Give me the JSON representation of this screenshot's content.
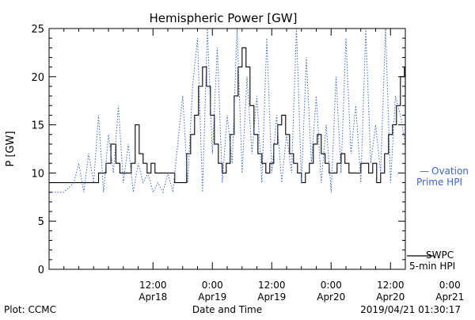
{
  "chart_data": {
    "type": "line",
    "title": "Hemispheric Power [GW]",
    "ylabel": "P [GW]",
    "xlabel": "Date and Time",
    "ylim": [
      0,
      25
    ],
    "yticks": [
      0,
      5,
      10,
      15,
      20,
      25
    ],
    "xlim_hours": [
      0,
      72
    ],
    "x_unit": "hours from 2019-04-17 15:00",
    "xticks": [
      {
        "x": 21,
        "time": "12:00",
        "date": "Apr18"
      },
      {
        "x": 33,
        "time": "0:00",
        "date": "Apr19"
      },
      {
        "x": 45,
        "time": "12:00",
        "date": "Apr19"
      },
      {
        "x": 57,
        "time": "0:00",
        "date": "Apr20"
      },
      {
        "x": 69,
        "time": "12:00",
        "date": "Apr20"
      },
      {
        "x": 81,
        "time": "0:00",
        "date": "Apr21"
      }
    ],
    "series": [
      {
        "name": "SWPC 5-min HPI",
        "color": "#000000",
        "style": "solid-step",
        "x": [
          0,
          2,
          4,
          6,
          8,
          10,
          11.5,
          12.5,
          13.5,
          14.3,
          15,
          15.8,
          16.6,
          17.4,
          18.2,
          19,
          19.8,
          20.6,
          21.4,
          22.2,
          23,
          23.8,
          24.6,
          25.4,
          26.2,
          27,
          27.8,
          28.6,
          29.4,
          30.2,
          31,
          31.8,
          32.6,
          33.4,
          34.2,
          35,
          35.8,
          36.6,
          37.4,
          38.2,
          39,
          39.8,
          40.6,
          41.4,
          42.2,
          43,
          43.8,
          44.6,
          45.4,
          46.2,
          47,
          47.8,
          48.6,
          49.4,
          50.2,
          51,
          51.8,
          52.6,
          53.4,
          54.2,
          55,
          55.8,
          56.6,
          57.4,
          58.2,
          59,
          59.8,
          60.6,
          61.4,
          62.2,
          63,
          63.8,
          64.6,
          65.4,
          66.2,
          67,
          67.8,
          68.6,
          69.4,
          70.2,
          71,
          71.8,
          72
        ],
        "values": [
          9,
          9,
          9,
          9,
          9,
          10,
          11,
          13,
          11,
          10,
          10,
          10,
          11,
          15,
          12,
          11,
          10,
          11,
          10,
          10,
          10,
          10,
          10,
          9,
          9,
          9,
          12,
          14,
          16,
          19,
          21,
          19,
          16,
          13,
          11,
          10,
          11,
          14,
          18,
          21,
          23,
          21,
          17,
          14,
          12,
          11,
          10,
          11,
          13,
          15,
          16,
          14,
          12,
          11,
          10,
          9,
          10,
          11,
          13,
          14,
          12,
          11,
          10,
          10,
          11,
          12,
          11,
          10,
          10,
          10,
          11,
          11,
          10,
          11,
          9,
          10,
          12,
          14,
          15,
          17,
          20,
          21,
          13
        ]
      },
      {
        "name": "Ovation Prime HPI",
        "color": "#3a66c4",
        "style": "dotted",
        "x": [
          0,
          3,
          5,
          6,
          7,
          8,
          9,
          10,
          11,
          12,
          13,
          14,
          15,
          16,
          17,
          18,
          19,
          20,
          21,
          22,
          23,
          24,
          25,
          26,
          27,
          28,
          29,
          30,
          31,
          32,
          33,
          34,
          35,
          36,
          37,
          38,
          39,
          40,
          41,
          42,
          43,
          44,
          45,
          46,
          47,
          48,
          49,
          50,
          51,
          52,
          53,
          54,
          55,
          56,
          57,
          58,
          59,
          60,
          61,
          62,
          63,
          64,
          65,
          66,
          67,
          68,
          69,
          70,
          71,
          72
        ],
        "values": [
          8,
          8,
          9,
          11,
          8,
          12,
          9,
          16,
          8,
          14,
          10,
          17,
          9,
          13,
          8,
          11,
          9,
          10,
          8,
          9,
          8,
          10,
          8,
          13,
          18,
          9,
          19,
          24,
          8,
          25,
          12,
          23,
          9,
          16,
          11,
          25,
          10,
          20,
          12,
          18,
          9,
          24,
          10,
          16,
          9,
          14,
          10,
          25,
          9,
          22,
          11,
          18,
          9,
          15,
          8,
          20,
          10,
          24,
          12,
          17,
          9,
          25,
          11,
          15,
          10,
          25,
          9,
          18,
          16,
          13
        ]
      }
    ],
    "legend": [
      {
        "marker": "—",
        "label1": "Ovation",
        "label2": "Prime HPI",
        "color": "#3a66c4"
      },
      {
        "label1": "SWPC",
        "label2": "5-min HPI",
        "color": "#000000"
      }
    ],
    "grid": false,
    "legend_position": "right"
  },
  "footer": {
    "plot_source": "Plot: CCMC",
    "timestamp": "2019/04/21 01:30:17"
  }
}
